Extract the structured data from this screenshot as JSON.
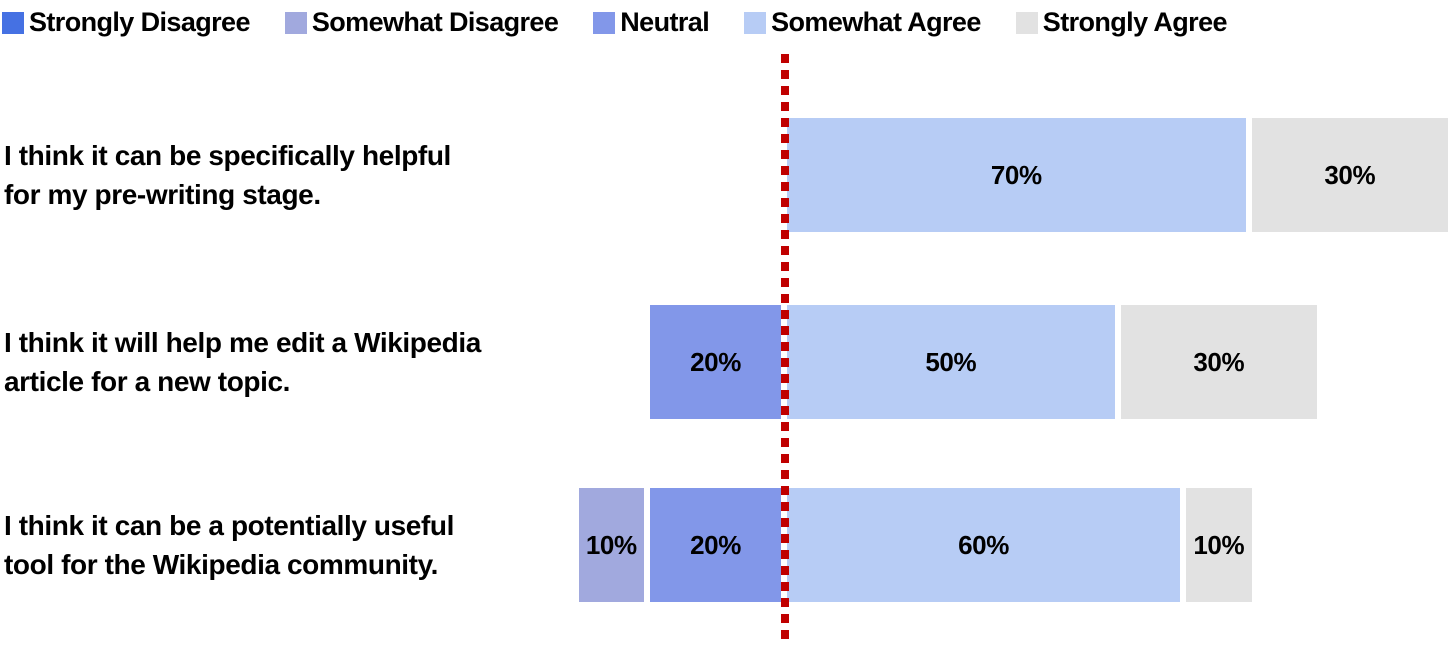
{
  "chart_data": {
    "type": "bar",
    "subtype": "diverging_stacked_horizontal_likert",
    "title": "",
    "unit": "%",
    "legend_position": "top",
    "axis_range_pct": [
      0,
      100
    ],
    "divider": {
      "color": "#C00000",
      "style": "dotted",
      "meaning": "boundary between neutral/disagree side and agree side"
    },
    "legend": [
      {
        "label": "Strongly Disagree",
        "color": "#4571E3"
      },
      {
        "label": "Somewhat Disagree",
        "color": "#A1A9DE"
      },
      {
        "label": "Neutral",
        "color": "#8297E9"
      },
      {
        "label": "Somewhat Agree",
        "color": "#B7CCF5"
      },
      {
        "label": "Strongly Agree",
        "color": "#E2E2E2"
      }
    ],
    "rows": [
      {
        "label": "I think it can be specifically helpful for my pre-writing stage.",
        "label_lines": [
          "I think it can be specifically helpful",
          "for my pre-writing stage."
        ],
        "segments": [
          {
            "category": "Somewhat Agree",
            "value": 70,
            "display": "70%"
          },
          {
            "category": "Strongly Agree",
            "value": 30,
            "display": "30%"
          }
        ]
      },
      {
        "label": "I think it will help me edit a Wikipedia article for a new topic.",
        "label_lines": [
          "I think it will help me edit a Wikipedia",
          "article for a new topic."
        ],
        "segments": [
          {
            "category": "Neutral",
            "value": 20,
            "display": "20%"
          },
          {
            "category": "Somewhat Agree",
            "value": 50,
            "display": "50%"
          },
          {
            "category": "Strongly Agree",
            "value": 30,
            "display": "30%"
          }
        ]
      },
      {
        "label": "I think it can be a potentially useful tool for the Wikipedia community.",
        "label_lines": [
          "I think it can be a potentially useful",
          "tool for the Wikipedia community."
        ],
        "segments": [
          {
            "category": "Somewhat Disagree",
            "value": 10,
            "display": "10%"
          },
          {
            "category": "Neutral",
            "value": 20,
            "display": "20%"
          },
          {
            "category": "Somewhat Agree",
            "value": 60,
            "display": "60%"
          },
          {
            "category": "Strongly Agree",
            "value": 10,
            "display": "10%"
          }
        ]
      }
    ]
  }
}
